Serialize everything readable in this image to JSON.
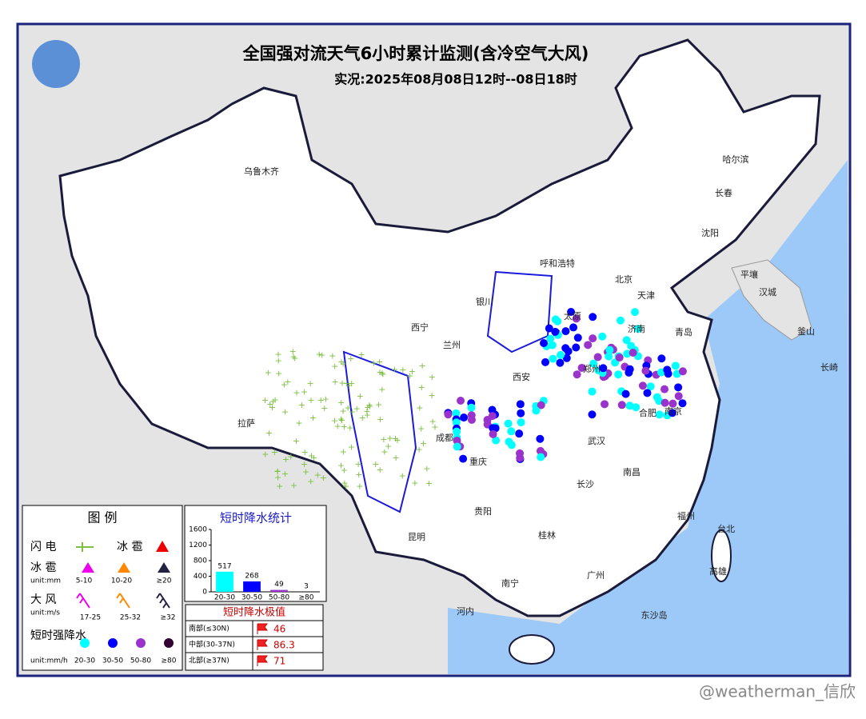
{
  "header": {
    "title": "全国强对流天气6小时累计监测(含冷空气大风)",
    "subtitle": "实况:2025年08月08日12时--08日18时"
  },
  "cities": [
    "乌鲁木齐",
    "哈尔滨",
    "长春",
    "沈阳",
    "呼和浩特",
    "北京",
    "天津",
    "太原",
    "济南",
    "青岛",
    "西宁",
    "兰州",
    "银川",
    "西安",
    "郑州",
    "合肥",
    "南京",
    "拉萨",
    "成都",
    "重庆",
    "武汉",
    "长沙",
    "南昌",
    "贵阳",
    "昆明",
    "桂林",
    "南宁",
    "广州",
    "福州",
    "台北",
    "高雄",
    "河内",
    "东沙岛",
    "平壤",
    "汉城",
    "釜山",
    "长崎"
  ],
  "legend": {
    "title": "图 例",
    "lightning": "闪 电",
    "hail": "冰 雹",
    "hail_size": "冰 雹",
    "hail_unit": "unit:mm",
    "hail_classes": [
      "5-10",
      "10-20",
      "≥20"
    ],
    "wind": "大 风",
    "wind_unit": "unit:m/s",
    "wind_classes": [
      "17-25",
      "25-32",
      "≥32"
    ],
    "rain": "短时强降水",
    "rain_unit": "unit:mm/h",
    "rain_classes": [
      "20-30",
      "30-50",
      "50-80",
      "≥80"
    ]
  },
  "chart_data": {
    "type": "bar",
    "title": "短时降水统计",
    "categories": [
      "20-30",
      "30-50",
      "50-80",
      "≥80"
    ],
    "values": [
      517,
      268,
      49,
      3
    ],
    "colors": [
      "#00ffff",
      "#0000ff",
      "#9933cc",
      "#330033"
    ],
    "ylim": [
      0,
      1600
    ],
    "yticks": [
      0,
      400,
      800,
      1200,
      1600
    ]
  },
  "extremes": {
    "title": "短时降水极值",
    "rows": [
      [
        "南部(≤30N)",
        "46"
      ],
      [
        "中部(30-37N)",
        "86.3"
      ],
      [
        "北部(≥37N)",
        "71"
      ]
    ]
  },
  "watermark": "@weatherman_信欣"
}
